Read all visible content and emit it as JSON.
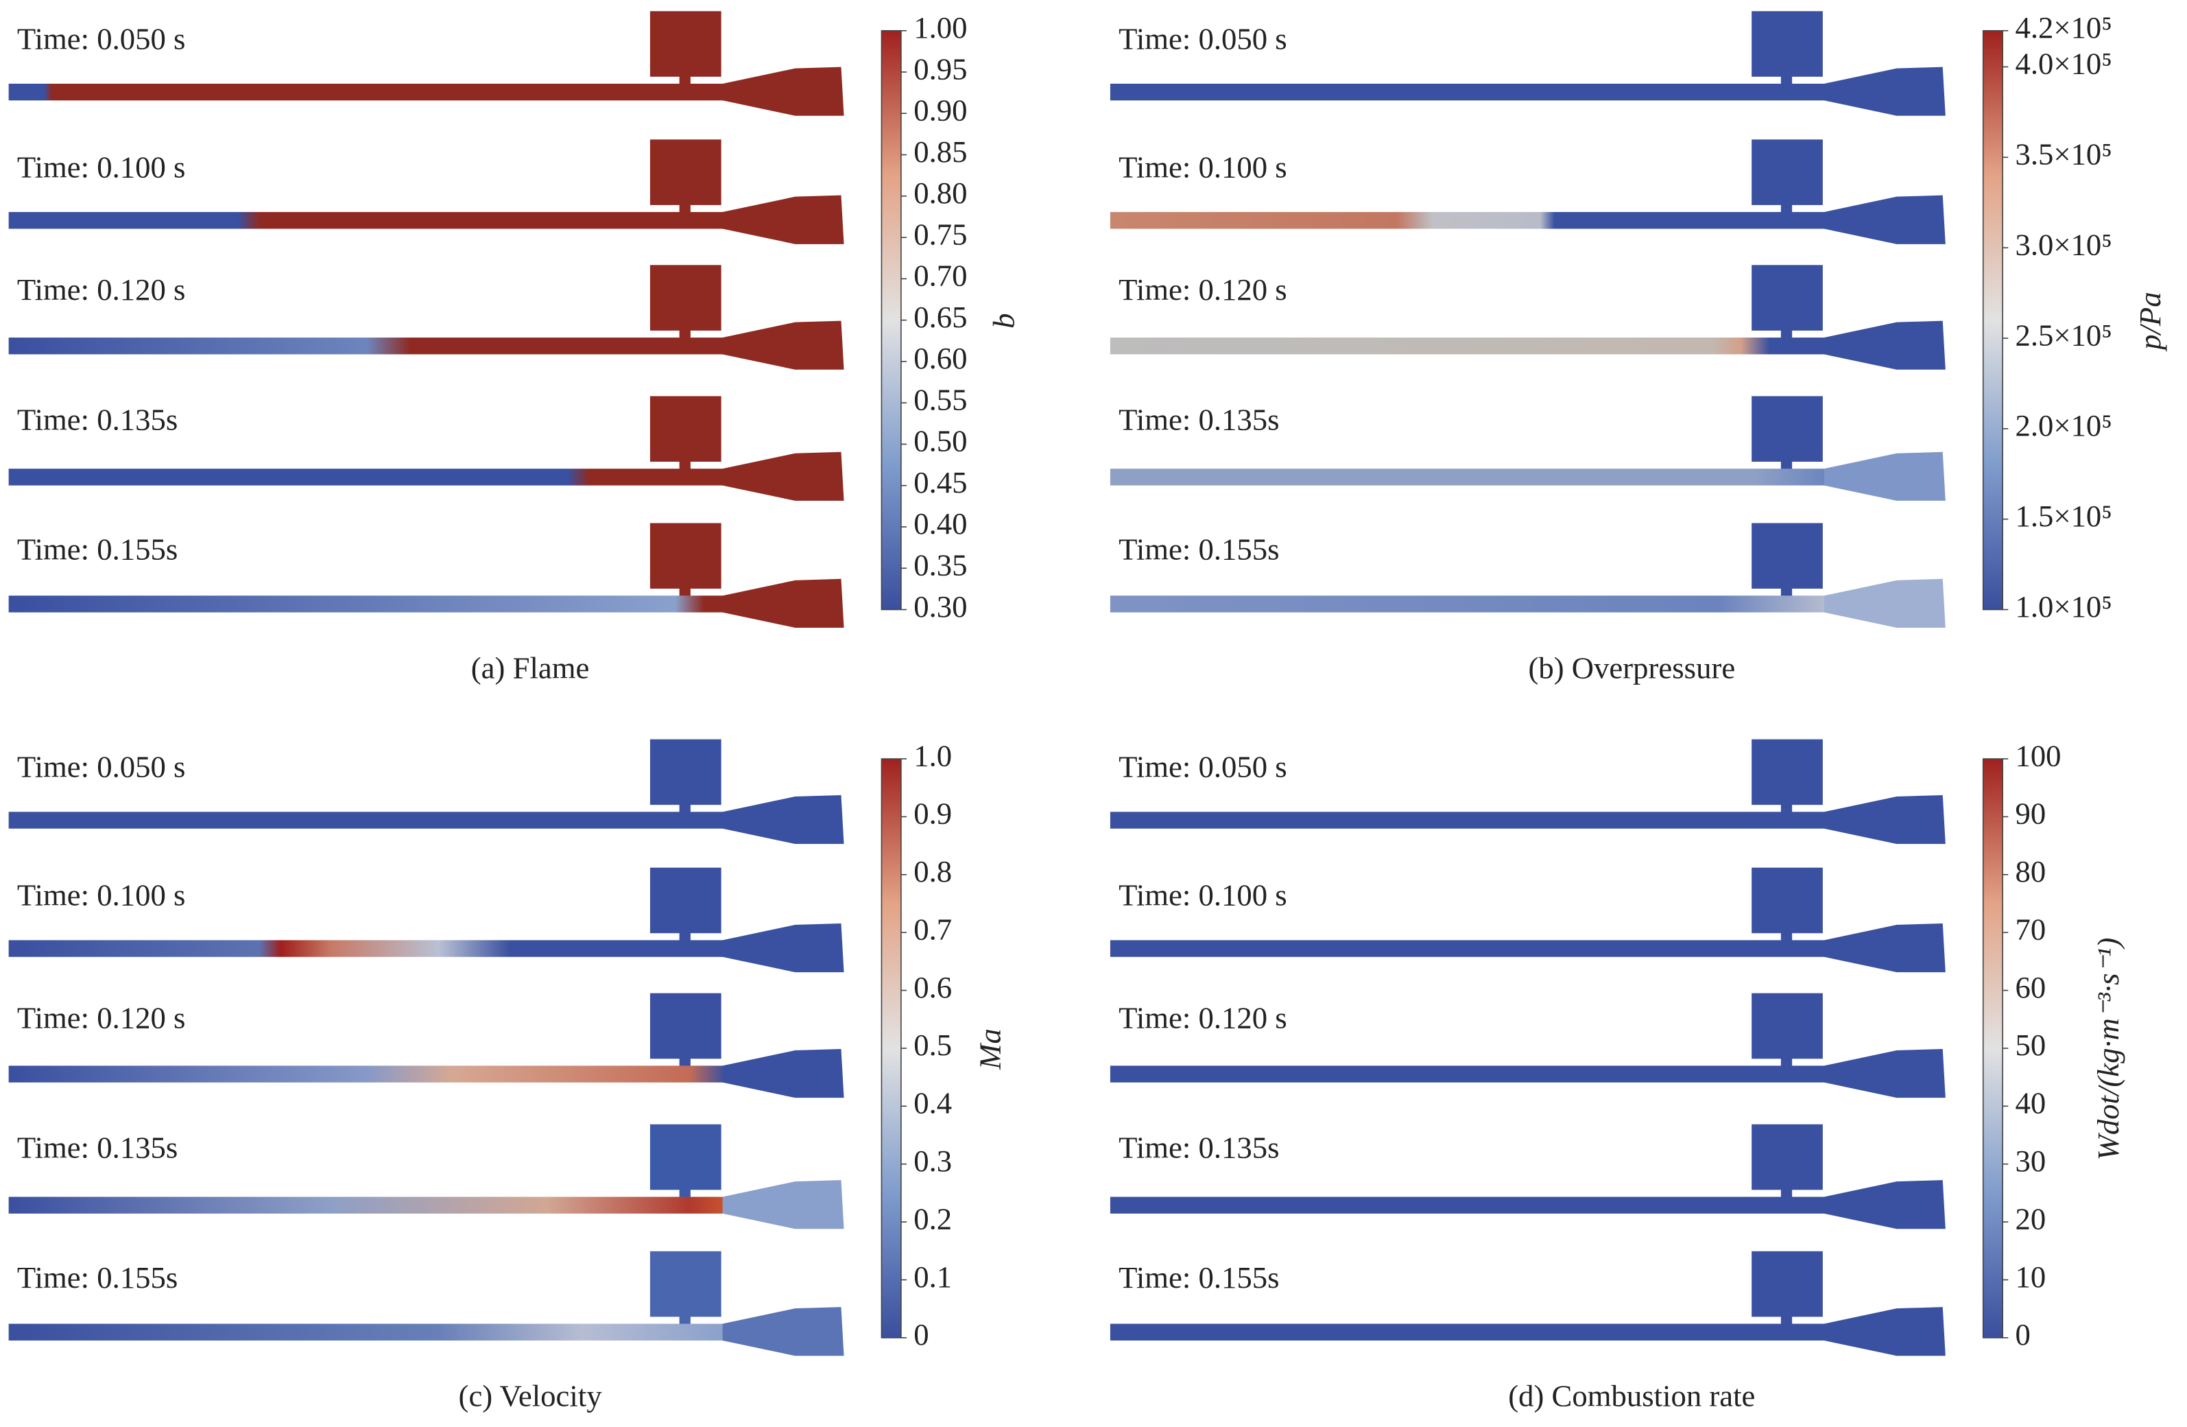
{
  "panels": [
    {
      "caption": "(a) Flame",
      "time_labels": [
        "Time: 0.050 s",
        "Time: 0.100 s",
        "Time: 0.120 s",
        "Time: 0.135s",
        "Time: 0.155s"
      ],
      "colorbar": {
        "label": "b",
        "range": [
          0.3,
          1
        ],
        "ticks": [
          {
            "value": 1,
            "label": "1.00"
          },
          0.95,
          {
            "value": 0.9,
            "label": "0.90"
          },
          0.85,
          {
            "value": 0.8,
            "label": "0.80"
          },
          0.75,
          {
            "value": 0.7,
            "label": "0.70"
          },
          0.65,
          {
            "value": 0.6,
            "label": "0.60"
          },
          0.55,
          {
            "value": 0.5,
            "label": "0.50"
          },
          0.45,
          {
            "value": 0.4,
            "label": "0.40"
          },
          0.35,
          {
            "value": 0.3,
            "label": "0.30"
          }
        ]
      }
    },
    {
      "caption": "(b) Overpressure",
      "time_labels": [
        "Time: 0.050 s",
        "Time: 0.100 s",
        "Time: 0.120 s",
        "Time: 0.135s",
        "Time: 0.155s"
      ],
      "colorbar": {
        "label": "p/Pa",
        "range": [
          100000,
          420000
        ],
        "ticks": [
          {
            "value": 420000,
            "label": "4.2×10⁵"
          },
          {
            "value": 400000,
            "label": "4.0×10⁵"
          },
          {
            "value": 350000,
            "label": "3.5×10⁵"
          },
          {
            "value": 300000,
            "label": "3.0×10⁵"
          },
          {
            "value": 250000,
            "label": "2.5×10⁵"
          },
          {
            "value": 200000,
            "label": "2.0×10⁵"
          },
          {
            "value": 150000,
            "label": "1.5×10⁵"
          },
          {
            "value": 100000,
            "label": "1.0×10⁵"
          }
        ]
      }
    },
    {
      "caption": "(c) Velocity",
      "time_labels": [
        "Time: 0.050 s",
        "Time: 0.100 s",
        "Time: 0.120 s",
        "Time: 0.135s",
        "Time: 0.155s"
      ],
      "colorbar": {
        "label": "Ma",
        "range": [
          0,
          1
        ],
        "ticks": [
          {
            "value": 1,
            "label": "1.0"
          },
          0.9,
          0.8,
          0.7,
          0.6,
          0.5,
          0.4,
          0.3,
          0.2,
          0.1,
          0
        ]
      }
    },
    {
      "caption": "(d) Combustion rate",
      "time_labels": [
        "Time: 0.050 s",
        "Time: 0.100 s",
        "Time: 0.120 s",
        "Time: 0.135s",
        "Time: 0.155s"
      ],
      "colorbar": {
        "label": "Wdot/(kg·m⁻³·s⁻¹)",
        "range": [
          0,
          100
        ],
        "ticks": [
          100,
          90,
          80,
          70,
          60,
          50,
          40,
          30,
          20,
          10,
          0
        ]
      }
    }
  ],
  "colormap": [
    "#3a4f9e",
    "#7f9ccc",
    "#e2e2e2",
    "#e3a386",
    "#a0211f"
  ]
}
